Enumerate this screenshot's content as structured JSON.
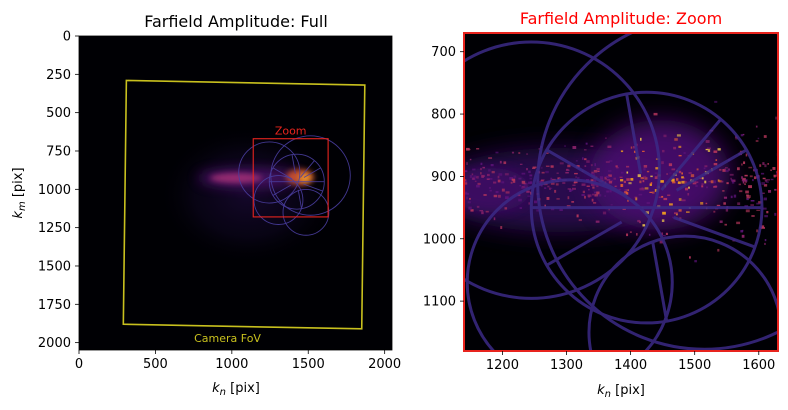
{
  "chart_data": [
    {
      "type": "heatmap",
      "title": "Farfield Amplitude: Full",
      "xlabel_base": "k",
      "xlabel_sub": "n",
      "xlabel_unit": " [pix]",
      "ylabel_base": "k",
      "ylabel_sub": "m",
      "ylabel_unit": " [pix]",
      "xlim": [
        0,
        2048
      ],
      "ylim": [
        2048,
        0
      ],
      "x_ticks": [
        0,
        500,
        1000,
        1500,
        2000
      ],
      "y_ticks": [
        0,
        250,
        500,
        750,
        1000,
        1250,
        1500,
        1750,
        2000
      ],
      "colormap": "inferno",
      "annotations": [
        {
          "label": "Camera FoV",
          "shape": "polygon",
          "color": "#c8c01e",
          "points": [
            [
              310,
              290
            ],
            [
              1870,
              320
            ],
            [
              1850,
              1910
            ],
            [
              290,
              1880
            ]
          ]
        },
        {
          "label": "Zoom",
          "shape": "rectangle",
          "color": "#e8241e",
          "x_range": [
            1140,
            1630
          ],
          "y_range": [
            670,
            1180
          ]
        }
      ]
    },
    {
      "type": "heatmap",
      "title": "Farfield Amplitude: Zoom",
      "title_color": "#ff0000",
      "xlabel_base": "k",
      "xlabel_sub": "n",
      "xlabel_unit": " [pix]",
      "xlim": [
        1140,
        1630
      ],
      "ylim": [
        1180,
        670
      ],
      "x_ticks": [
        1200,
        1300,
        1400,
        1500,
        1600
      ],
      "y_ticks": [
        700,
        800,
        900,
        1000,
        1100
      ],
      "colormap": "inferno",
      "frame_color": "#e8241e"
    }
  ]
}
